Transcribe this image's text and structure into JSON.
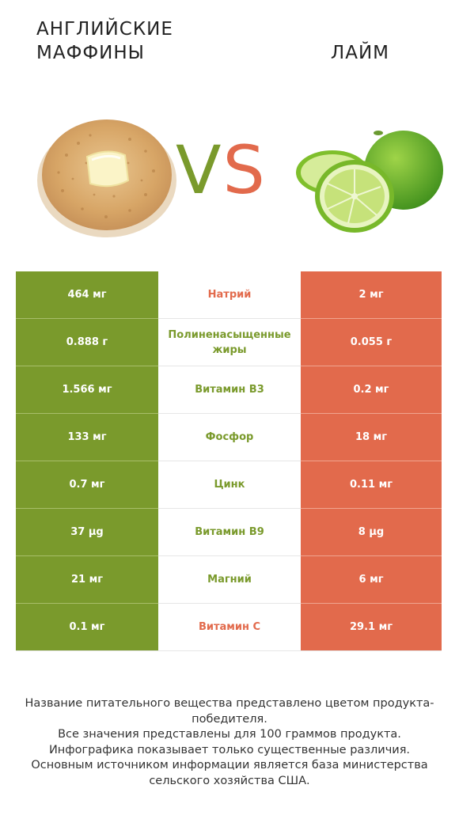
{
  "header": {
    "left_title": "Английские маффины",
    "right_title": "Лайм",
    "vs_v": "V",
    "vs_s": "S"
  },
  "colors": {
    "left_winner": "#7a9a2c",
    "right_winner": "#e26a4c"
  },
  "rows": [
    {
      "nutrient": "Натрий",
      "left": "464 мг",
      "right": "2 мг",
      "winner": "right"
    },
    {
      "nutrient": "Полиненасыщенные жиры",
      "left": "0.888 г",
      "right": "0.055 г",
      "winner": "left"
    },
    {
      "nutrient": "Витамин B3",
      "left": "1.566 мг",
      "right": "0.2 мг",
      "winner": "left"
    },
    {
      "nutrient": "Фосфор",
      "left": "133 мг",
      "right": "18 мг",
      "winner": "left"
    },
    {
      "nutrient": "Цинк",
      "left": "0.7 мг",
      "right": "0.11 мг",
      "winner": "left"
    },
    {
      "nutrient": "Витамин B9",
      "left": "37 µg",
      "right": "8 µg",
      "winner": "left"
    },
    {
      "nutrient": "Магний",
      "left": "21 мг",
      "right": "6 мг",
      "winner": "left"
    },
    {
      "nutrient": "Витамин C",
      "left": "0.1 мг",
      "right": "29.1 мг",
      "winner": "right"
    }
  ],
  "footer": {
    "line1": "Название питательного вещества представлено цветом продукта-победителя.",
    "line2": "Все значения представлены для 100 граммов продукта.",
    "line3": "Инфографика показывает только существенные различия.",
    "line4": "Основным источником информации является база министерства сельского хозяйства США."
  }
}
